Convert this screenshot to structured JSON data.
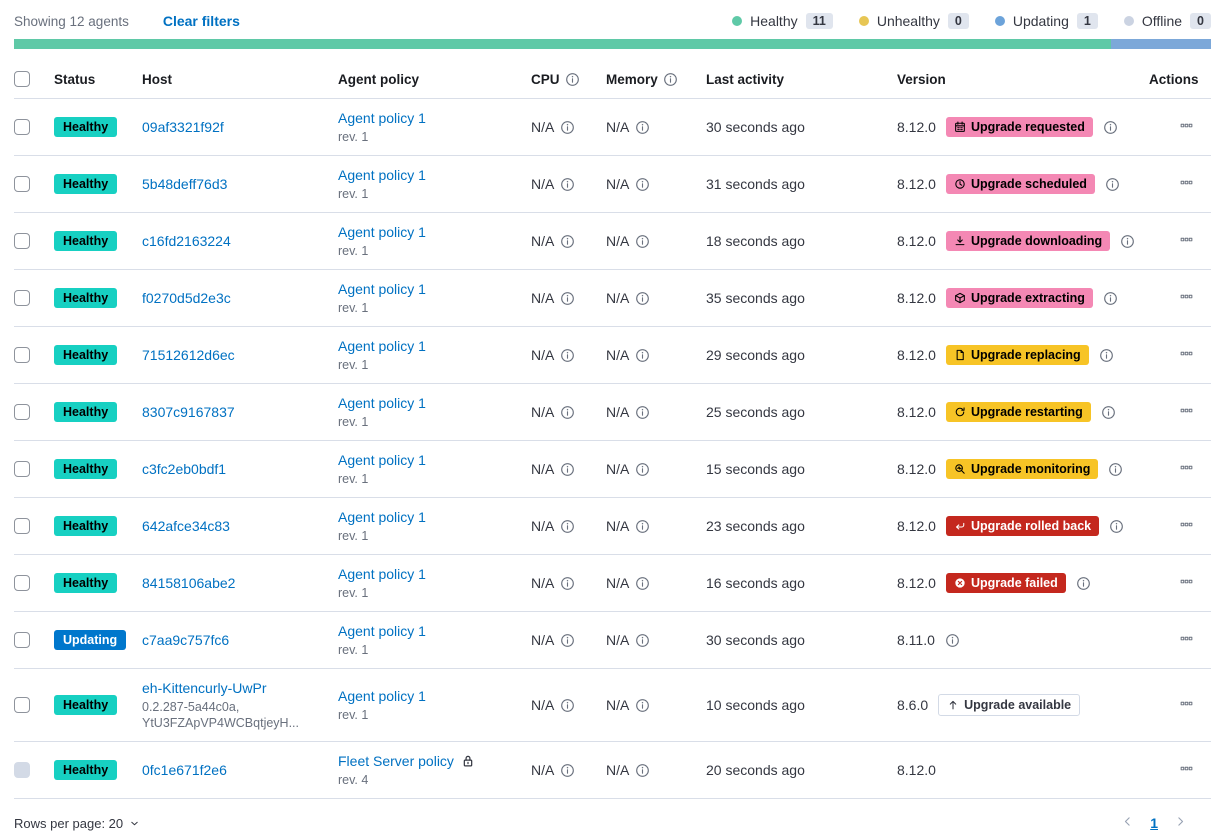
{
  "toolbar": {
    "showing": "Showing 12 agents",
    "clear_filters": "Clear filters",
    "legend": [
      {
        "label": "Healthy",
        "count": "11",
        "color": "#5FC9A7"
      },
      {
        "label": "Unhealthy",
        "count": "0",
        "color": "#E7C654"
      },
      {
        "label": "Updating",
        "count": "1",
        "color": "#6CA3DA"
      },
      {
        "label": "Offline",
        "count": "0",
        "color": "#CBD3E2"
      }
    ]
  },
  "health_bar": {
    "segments": [
      {
        "status": "healthy",
        "color": "#5FC9A7",
        "width_pct": 91.67
      },
      {
        "status": "updating",
        "color": "#7CA8D9",
        "width_pct": 8.33
      }
    ]
  },
  "table": {
    "headers": {
      "status": "Status",
      "host": "Host",
      "policy": "Agent policy",
      "cpu": "CPU",
      "memory": "Memory",
      "last_activity": "Last activity",
      "version": "Version",
      "actions": "Actions"
    },
    "rows": [
      {
        "status": "Healthy",
        "status_type": "healthy",
        "host": "09af3321f92f",
        "host_sub": null,
        "policy_name": "Agent policy 1",
        "policy_rev": "rev. 1",
        "policy_locked": false,
        "cpu": "N/A",
        "memory": "N/A",
        "last_activity": "30 seconds ago",
        "version": "8.12.0",
        "upgrade_label": "Upgrade requested",
        "upgrade_icon": "calendar-icon",
        "upgrade_style": "pink",
        "info_after_badge": true,
        "info_after_version": false,
        "checkbox_disabled": false
      },
      {
        "status": "Healthy",
        "status_type": "healthy",
        "host": "5b48deff76d3",
        "host_sub": null,
        "policy_name": "Agent policy 1",
        "policy_rev": "rev. 1",
        "policy_locked": false,
        "cpu": "N/A",
        "memory": "N/A",
        "last_activity": "31 seconds ago",
        "version": "8.12.0",
        "upgrade_label": "Upgrade scheduled",
        "upgrade_icon": "clock-icon",
        "upgrade_style": "pink",
        "info_after_badge": true,
        "info_after_version": false,
        "checkbox_disabled": false
      },
      {
        "status": "Healthy",
        "status_type": "healthy",
        "host": "c16fd2163224",
        "host_sub": null,
        "policy_name": "Agent policy 1",
        "policy_rev": "rev. 1",
        "policy_locked": false,
        "cpu": "N/A",
        "memory": "N/A",
        "last_activity": "18 seconds ago",
        "version": "8.12.0",
        "upgrade_label": "Upgrade downloading",
        "upgrade_icon": "download-icon",
        "upgrade_style": "pink",
        "info_after_badge": true,
        "info_after_version": false,
        "checkbox_disabled": false
      },
      {
        "status": "Healthy",
        "status_type": "healthy",
        "host": "f0270d5d2e3c",
        "host_sub": null,
        "policy_name": "Agent policy 1",
        "policy_rev": "rev. 1",
        "policy_locked": false,
        "cpu": "N/A",
        "memory": "N/A",
        "last_activity": "35 seconds ago",
        "version": "8.12.0",
        "upgrade_label": "Upgrade extracting",
        "upgrade_icon": "package-icon",
        "upgrade_style": "pink",
        "info_after_badge": true,
        "info_after_version": false,
        "checkbox_disabled": false
      },
      {
        "status": "Healthy",
        "status_type": "healthy",
        "host": "71512612d6ec",
        "host_sub": null,
        "policy_name": "Agent policy 1",
        "policy_rev": "rev. 1",
        "policy_locked": false,
        "cpu": "N/A",
        "memory": "N/A",
        "last_activity": "29 seconds ago",
        "version": "8.12.0",
        "upgrade_label": "Upgrade replacing",
        "upgrade_icon": "document-icon",
        "upgrade_style": "yellow",
        "info_after_badge": true,
        "info_after_version": false,
        "checkbox_disabled": false
      },
      {
        "status": "Healthy",
        "status_type": "healthy",
        "host": "8307c9167837",
        "host_sub": null,
        "policy_name": "Agent policy 1",
        "policy_rev": "rev. 1",
        "policy_locked": false,
        "cpu": "N/A",
        "memory": "N/A",
        "last_activity": "25 seconds ago",
        "version": "8.12.0",
        "upgrade_label": "Upgrade restarting",
        "upgrade_icon": "refresh-icon",
        "upgrade_style": "yellow",
        "info_after_badge": true,
        "info_after_version": false,
        "checkbox_disabled": false
      },
      {
        "status": "Healthy",
        "status_type": "healthy",
        "host": "c3fc2eb0bdf1",
        "host_sub": null,
        "policy_name": "Agent policy 1",
        "policy_rev": "rev. 1",
        "policy_locked": false,
        "cpu": "N/A",
        "memory": "N/A",
        "last_activity": "15 seconds ago",
        "version": "8.12.0",
        "upgrade_label": "Upgrade monitoring",
        "upgrade_icon": "inspect-icon",
        "upgrade_style": "yellow",
        "info_after_badge": true,
        "info_after_version": false,
        "checkbox_disabled": false
      },
      {
        "status": "Healthy",
        "status_type": "healthy",
        "host": "642afce34c83",
        "host_sub": null,
        "policy_name": "Agent policy 1",
        "policy_rev": "rev. 1",
        "policy_locked": false,
        "cpu": "N/A",
        "memory": "N/A",
        "last_activity": "23 seconds ago",
        "version": "8.12.0",
        "upgrade_label": "Upgrade rolled back",
        "upgrade_icon": "return-icon",
        "upgrade_style": "red",
        "info_after_badge": true,
        "info_after_version": false,
        "checkbox_disabled": false
      },
      {
        "status": "Healthy",
        "status_type": "healthy",
        "host": "84158106abe2",
        "host_sub": null,
        "policy_name": "Agent policy 1",
        "policy_rev": "rev. 1",
        "policy_locked": false,
        "cpu": "N/A",
        "memory": "N/A",
        "last_activity": "16 seconds ago",
        "version": "8.12.0",
        "upgrade_label": "Upgrade failed",
        "upgrade_icon": "error-icon",
        "upgrade_style": "red",
        "info_after_badge": true,
        "info_after_version": false,
        "checkbox_disabled": false
      },
      {
        "status": "Updating",
        "status_type": "updating",
        "host": "c7aa9c757fc6",
        "host_sub": null,
        "policy_name": "Agent policy 1",
        "policy_rev": "rev. 1",
        "policy_locked": false,
        "cpu": "N/A",
        "memory": "N/A",
        "last_activity": "30 seconds ago",
        "version": "8.11.0",
        "upgrade_label": null,
        "upgrade_icon": null,
        "upgrade_style": null,
        "info_after_badge": false,
        "info_after_version": true,
        "checkbox_disabled": false
      },
      {
        "status": "Healthy",
        "status_type": "healthy",
        "host": "eh-Kittencurly-UwPr",
        "host_sub": "0.2.287-5a44c0a,\nYtU3FZApVP4WCBqtjeyH...",
        "policy_name": "Agent policy 1",
        "policy_rev": "rev. 1",
        "policy_locked": false,
        "cpu": "N/A",
        "memory": "N/A",
        "last_activity": "10 seconds ago",
        "version": "8.6.0",
        "upgrade_label": "Upgrade available",
        "upgrade_icon": "arrow-up-icon",
        "upgrade_style": "hollow",
        "info_after_badge": false,
        "info_after_version": false,
        "checkbox_disabled": false
      },
      {
        "status": "Healthy",
        "status_type": "healthy",
        "host": "0fc1e671f2e6",
        "host_sub": null,
        "policy_name": "Fleet Server policy",
        "policy_rev": "rev. 4",
        "policy_locked": true,
        "cpu": "N/A",
        "memory": "N/A",
        "last_activity": "20 seconds ago",
        "version": "8.12.0",
        "upgrade_label": null,
        "upgrade_icon": null,
        "upgrade_style": null,
        "info_after_badge": false,
        "info_after_version": false,
        "checkbox_disabled": true
      }
    ]
  },
  "footer": {
    "rows_per_page": "Rows per page: 20",
    "page": "1"
  },
  "colors": {
    "healthy_badge": "#17D0C2",
    "updating_badge": "#0077CC",
    "pink_badge": "#F488B4",
    "yellow_badge": "#F7C426",
    "red_badge": "#C4281E",
    "link": "#0071C2",
    "muted_text": "#69707D",
    "row_border": "#D9DEE8"
  }
}
